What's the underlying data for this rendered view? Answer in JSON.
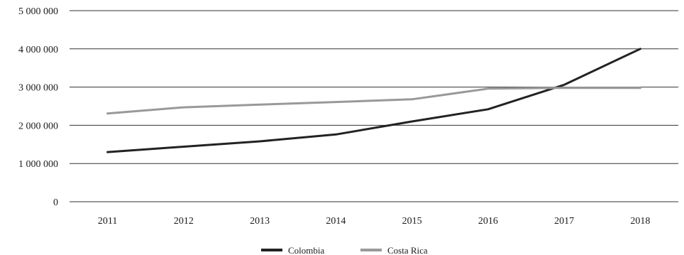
{
  "chart_data": {
    "type": "line",
    "title": "",
    "xlabel": "",
    "ylabel": "",
    "categories": [
      "2011",
      "2012",
      "2013",
      "2014",
      "2015",
      "2016",
      "2017",
      "2018"
    ],
    "y_ticks": [
      "0",
      "1 000 000",
      "2 000 000",
      "3 000 000",
      "4 000 000",
      "5 000 000"
    ],
    "ylim": [
      0,
      5000000
    ],
    "grid": true,
    "legend_position": "bottom",
    "series": [
      {
        "name": "Colombia",
        "color": "#222222",
        "values": [
          1300000,
          1440000,
          1580000,
          1760000,
          2100000,
          2420000,
          3060000,
          4000000
        ]
      },
      {
        "name": "Costa Rica",
        "color": "#999999",
        "values": [
          2310000,
          2470000,
          2540000,
          2610000,
          2680000,
          2960000,
          2980000,
          2980000
        ]
      }
    ]
  }
}
